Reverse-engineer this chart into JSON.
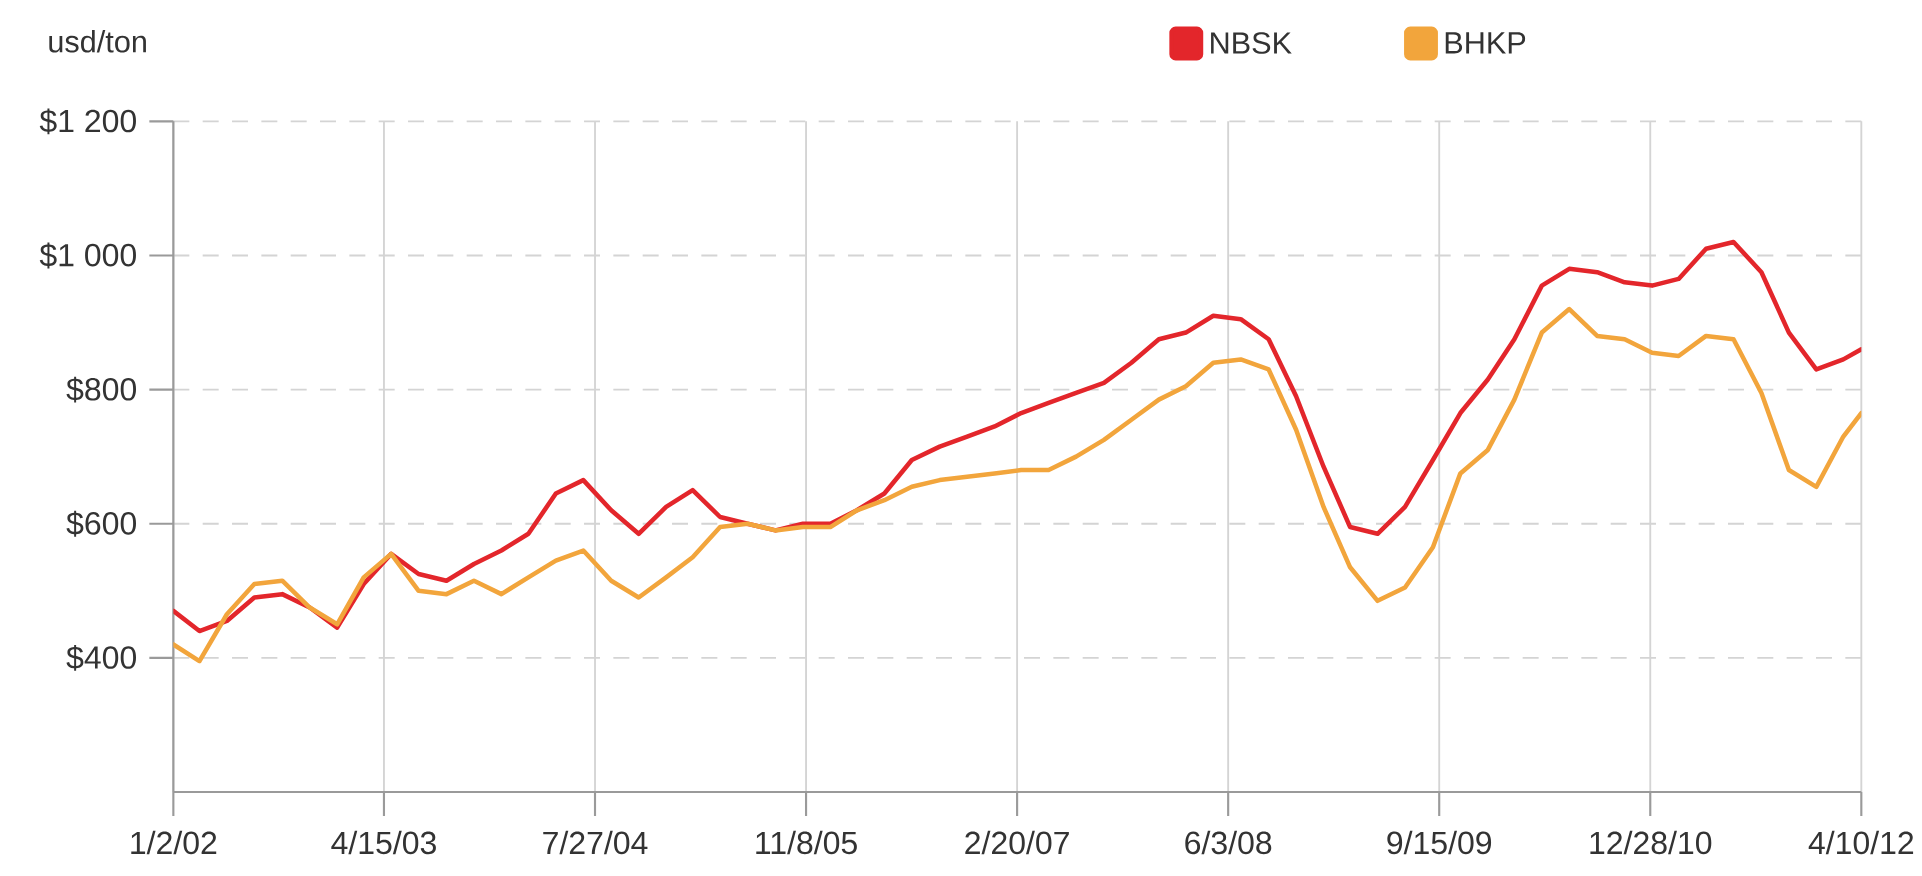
{
  "chart_data": {
    "type": "line",
    "ylabel": "usd/ton",
    "x": [
      "2002-01-02",
      "2002-03",
      "2002-05",
      "2002-07",
      "2002-09",
      "2002-11",
      "2003-01",
      "2003-03",
      "2003-05",
      "2003-07",
      "2003-09",
      "2003-11",
      "2004-01",
      "2004-03",
      "2004-05",
      "2004-07",
      "2004-09",
      "2004-11",
      "2005-01",
      "2005-03",
      "2005-05",
      "2005-07",
      "2005-09",
      "2005-11",
      "2006-01",
      "2006-03",
      "2006-05",
      "2006-07",
      "2006-09",
      "2006-11",
      "2007-01",
      "2007-03",
      "2007-05",
      "2007-07",
      "2007-09",
      "2007-11",
      "2008-01",
      "2008-03",
      "2008-05",
      "2008-07",
      "2008-09",
      "2008-11",
      "2009-01",
      "2009-03",
      "2009-05",
      "2009-07",
      "2009-09",
      "2009-11",
      "2010-01",
      "2010-03",
      "2010-05",
      "2010-07",
      "2010-09",
      "2010-11",
      "2011-01",
      "2011-03",
      "2011-05",
      "2011-07",
      "2011-09",
      "2011-11",
      "2012-01",
      "2012-03",
      "2012-04-10"
    ],
    "series": [
      {
        "name": "NBSK",
        "color": "#e3262b",
        "values": [
          470,
          440,
          455,
          490,
          495,
          475,
          445,
          510,
          555,
          525,
          515,
          540,
          560,
          585,
          645,
          665,
          620,
          585,
          625,
          650,
          610,
          600,
          590,
          600,
          600,
          620,
          645,
          695,
          715,
          730,
          745,
          765,
          780,
          795,
          810,
          840,
          875,
          885,
          910,
          905,
          875,
          790,
          685,
          595,
          585,
          625,
          695,
          765,
          815,
          875,
          955,
          980,
          975,
          960,
          955,
          965,
          1010,
          1020,
          975,
          885,
          830,
          845,
          860
        ]
      },
      {
        "name": "BHKP",
        "color": "#f2a53c",
        "values": [
          420,
          395,
          465,
          510,
          515,
          475,
          450,
          520,
          555,
          500,
          495,
          515,
          495,
          520,
          545,
          560,
          515,
          490,
          520,
          550,
          595,
          600,
          590,
          595,
          595,
          620,
          635,
          655,
          665,
          670,
          675,
          680,
          680,
          700,
          725,
          755,
          785,
          805,
          840,
          845,
          830,
          740,
          625,
          535,
          485,
          505,
          565,
          675,
          710,
          785,
          885,
          920,
          880,
          875,
          855,
          850,
          880,
          875,
          795,
          680,
          655,
          730,
          765
        ]
      }
    ],
    "xlim": [
      "2002-01-02",
      "2012-04-10"
    ],
    "xticks": [
      {
        "value": "2002-01-02",
        "label": "1/2/02"
      },
      {
        "value": "2003-04-15",
        "label": "4/15/03"
      },
      {
        "value": "2004-07-27",
        "label": "7/27/04"
      },
      {
        "value": "2005-11-08",
        "label": "11/8/05"
      },
      {
        "value": "2007-02-20",
        "label": "2/20/07"
      },
      {
        "value": "2008-06-03",
        "label": "6/3/08"
      },
      {
        "value": "2009-09-15",
        "label": "9/15/09"
      },
      {
        "value": "2010-12-28",
        "label": "12/28/10"
      },
      {
        "value": "2012-04-10",
        "label": "4/10/12"
      }
    ],
    "ylim": [
      200,
      1200
    ],
    "yticks": [
      {
        "value": 400,
        "label": "$400"
      },
      {
        "value": 600,
        "label": "$600"
      },
      {
        "value": 800,
        "label": "$800"
      },
      {
        "value": 1000,
        "label": "$1 000"
      },
      {
        "value": 1200,
        "label": "$1 200"
      }
    ],
    "grid": true,
    "legend": "top right"
  }
}
